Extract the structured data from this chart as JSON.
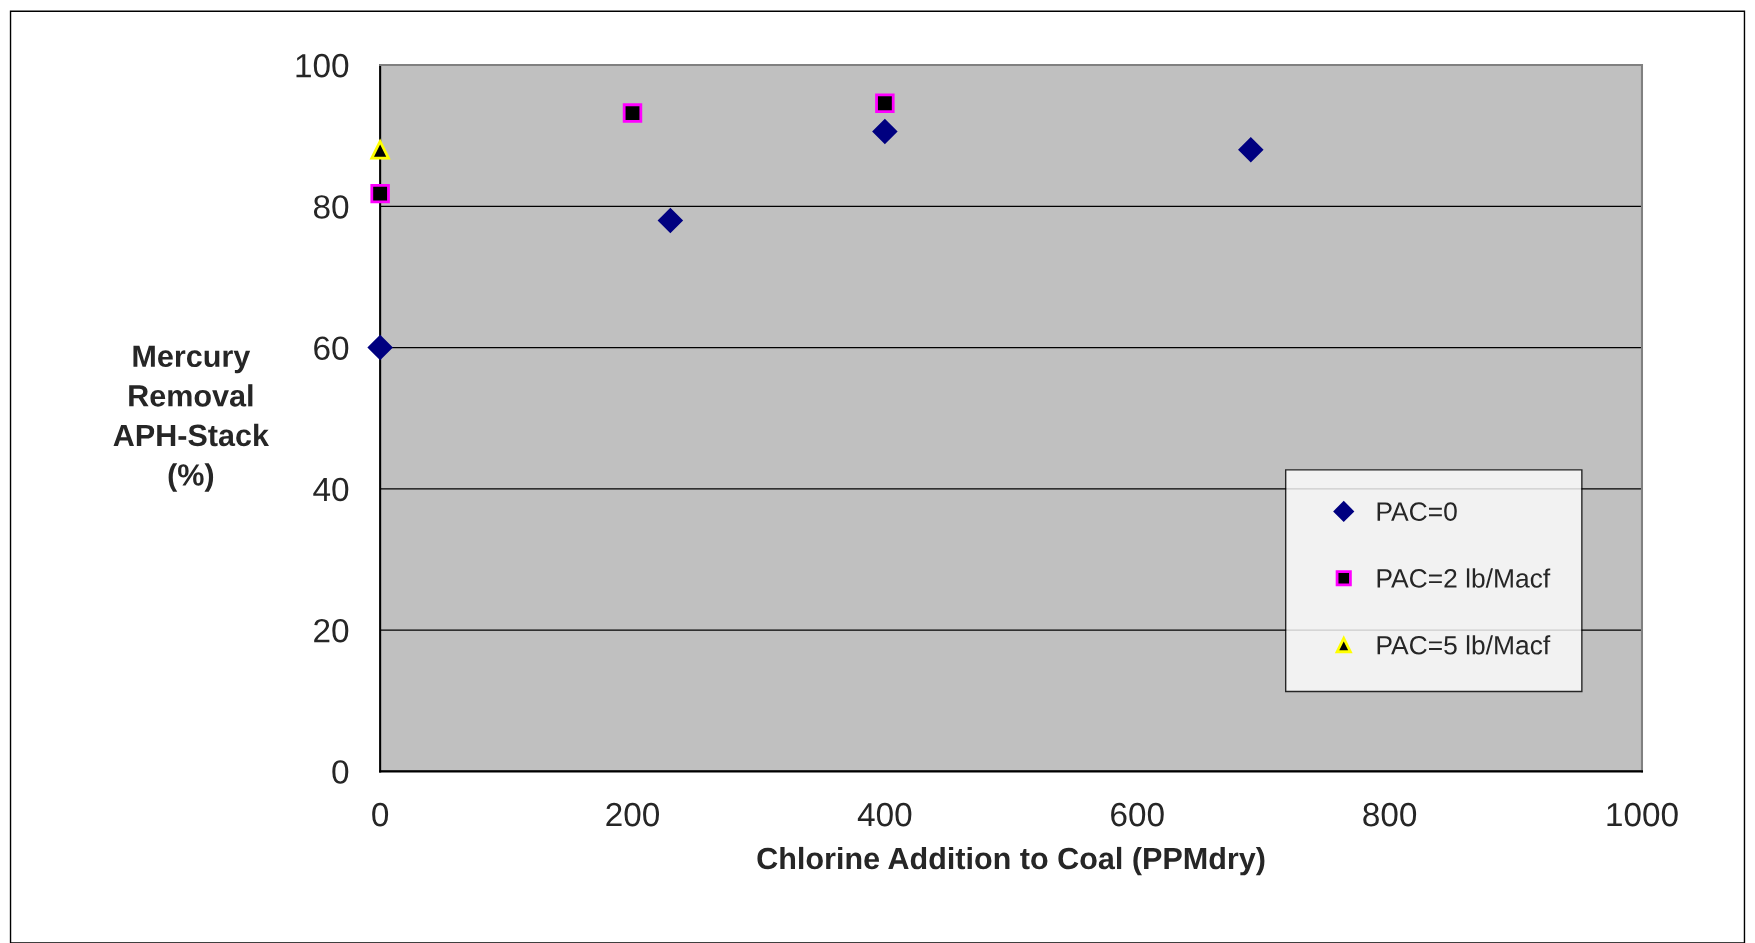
{
  "chart_data": {
    "type": "scatter",
    "xlabel": "Chlorine Addition to Coal (PPMdry)",
    "ylabel": "Mercury\nRemoval\nAPH-Stack\n(%)",
    "series": [
      {
        "name": "PAC=0",
        "color": "#000080",
        "marker": "diamond",
        "x": [
          0,
          230,
          400,
          690
        ],
        "values": [
          60,
          78,
          90.6,
          88
        ]
      },
      {
        "name": "PAC=2 lb/Macf",
        "color": "#ff00ff",
        "marker": "square",
        "x": [
          0,
          200,
          400
        ],
        "values": [
          81.8,
          93.2,
          94.6
        ]
      },
      {
        "name": "PAC=5 lb/Macf",
        "color": "#ffff00",
        "marker": "triangle",
        "x": [
          0
        ],
        "values": [
          88
        ]
      }
    ],
    "xlim": [
      0,
      1000
    ],
    "xticks": [
      0,
      200,
      400,
      600,
      800,
      1000
    ],
    "ylim": [
      0,
      100
    ],
    "yticks": [
      0,
      20,
      40,
      60,
      80,
      100
    ],
    "grid": "y",
    "legend": "right"
  }
}
